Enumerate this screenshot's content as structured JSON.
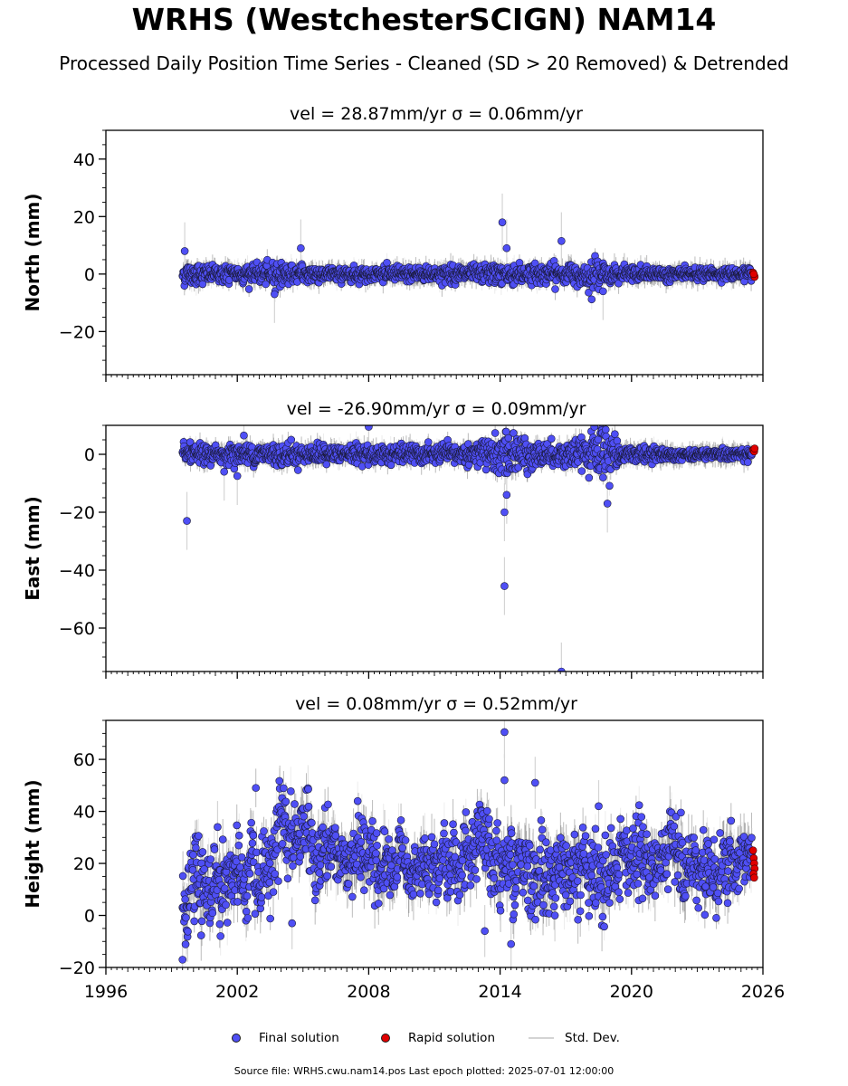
{
  "header": {
    "title": "WRHS (WestchesterSCIGN) NAM14",
    "subtitle": "Processed Daily Position Time Series - Cleaned (SD > 20 Removed) & Detrended"
  },
  "colors": {
    "final": "#4f4ff5",
    "final_edge": "#1a1a3a",
    "rapid": "#e00000",
    "std_dev": "#d4d4d4",
    "std_dev_dense": "#6a6a6a"
  },
  "legend": {
    "final": "Final solution",
    "rapid": "Rapid solution",
    "std": "Std. Dev."
  },
  "footer": {
    "text": "Source file: WRHS.cwu.nam14.pos  Last epoch plotted: 2025-07-01 12:00:00"
  },
  "chart_data": [
    {
      "type": "scatter",
      "title": "vel = 28.87mm/yr   σ = 0.06mm/yr",
      "ylabel": "North (mm)",
      "xlim": [
        1996,
        2026
      ],
      "ylim": [
        -35,
        50
      ],
      "yticks": [
        -20,
        0,
        20,
        40
      ],
      "xticks": [
        1996,
        2002,
        2008,
        2014,
        2020,
        2026
      ],
      "show_xtick_labels": false,
      "data_span": [
        1999.5,
        2025.5
      ],
      "band": [
        [
          1999.5,
          4
        ],
        [
          2001,
          3
        ],
        [
          2003,
          3
        ],
        [
          2004,
          4.5
        ],
        [
          2005,
          3
        ],
        [
          2007,
          2.5
        ],
        [
          2010,
          2.5
        ],
        [
          2013,
          3
        ],
        [
          2015,
          3.5
        ],
        [
          2017,
          3.5
        ],
        [
          2018.5,
          5
        ],
        [
          2019.5,
          2.5
        ],
        [
          2023,
          2
        ],
        [
          2025.5,
          2
        ]
      ],
      "final_outliers": [
        [
          2014.1,
          18
        ],
        [
          2014.3,
          9
        ],
        [
          2016.8,
          11.5
        ],
        [
          1999.6,
          8
        ],
        [
          2004.9,
          9
        ],
        [
          2003.7,
          -7
        ],
        [
          2018.7,
          -6
        ]
      ],
      "rapid_points": [
        [
          2025.55,
          0.5
        ],
        [
          2025.6,
          -0.5
        ],
        [
          2025.62,
          -1
        ],
        [
          2025.58,
          0
        ]
      ],
      "series": [
        {
          "name": "Final solution"
        },
        {
          "name": "Rapid solution"
        }
      ]
    },
    {
      "type": "scatter",
      "title": "vel = -26.90mm/yr   σ = 0.09mm/yr",
      "ylabel": "East (mm)",
      "xlim": [
        1996,
        2026
      ],
      "ylim": [
        -75,
        10
      ],
      "yticks": [
        -60,
        -40,
        -20,
        0
      ],
      "xticks": [
        1996,
        2002,
        2008,
        2014,
        2020,
        2026
      ],
      "show_xtick_labels": false,
      "data_span": [
        1999.5,
        2025.5
      ],
      "band": [
        [
          1999.5,
          3
        ],
        [
          2002,
          3
        ],
        [
          2004,
          4
        ],
        [
          2005,
          3
        ],
        [
          2008,
          3
        ],
        [
          2012,
          3
        ],
        [
          2013.5,
          6
        ],
        [
          2015,
          7
        ],
        [
          2016,
          4
        ],
        [
          2018,
          5
        ],
        [
          2018.8,
          12
        ],
        [
          2019.4,
          3
        ],
        [
          2022,
          2
        ],
        [
          2025.5,
          2
        ]
      ],
      "final_outliers": [
        [
          1999.7,
          -23
        ],
        [
          2014.2,
          -45.5
        ],
        [
          2014.2,
          -20
        ],
        [
          2014.3,
          -14
        ],
        [
          2016.8,
          -75
        ],
        [
          2008,
          9.5
        ],
        [
          2002.3,
          6.5
        ],
        [
          2001.4,
          -6
        ],
        [
          2002,
          -7.5
        ],
        [
          2018.9,
          -17
        ]
      ],
      "rapid_points": [
        [
          2025.55,
          1.5
        ],
        [
          2025.6,
          1
        ],
        [
          2025.62,
          2
        ]
      ],
      "series": [
        {
          "name": "Final solution"
        },
        {
          "name": "Rapid solution"
        }
      ]
    },
    {
      "type": "scatter",
      "title": "vel = 0.08mm/yr   σ = 0.52mm/yr",
      "ylabel": "Height (mm)",
      "xlim": [
        1996,
        2026
      ],
      "ylim": [
        -20,
        75
      ],
      "yticks": [
        -20,
        0,
        20,
        40,
        60
      ],
      "xticks": [
        1996,
        2002,
        2008,
        2014,
        2020,
        2026
      ],
      "xtick_labels": [
        "1996",
        "2002",
        "2008",
        "2014",
        "2020",
        "2026"
      ],
      "show_xtick_labels": true,
      "data_span": [
        1999.5,
        2025.5
      ],
      "center": [
        [
          1999.5,
          10
        ],
        [
          2001,
          11
        ],
        [
          2002.5,
          14
        ],
        [
          2003.5,
          22
        ],
        [
          2004.2,
          32
        ],
        [
          2005,
          26
        ],
        [
          2006,
          24
        ],
        [
          2008,
          25
        ],
        [
          2009,
          21
        ],
        [
          2011,
          19
        ],
        [
          2013,
          18
        ],
        [
          2014.3,
          22
        ],
        [
          2016,
          19
        ],
        [
          2018,
          18
        ],
        [
          2019,
          17
        ],
        [
          2021,
          19
        ],
        [
          2023,
          21
        ],
        [
          2025.5,
          20
        ]
      ],
      "band_half": [
        [
          1999.5,
          12
        ],
        [
          2004.2,
          14
        ],
        [
          2006,
          10
        ],
        [
          2010,
          10
        ],
        [
          2014.5,
          13
        ],
        [
          2019,
          13
        ],
        [
          2025.5,
          9
        ]
      ],
      "final_outliers": [
        [
          2014.2,
          70.5
        ],
        [
          2014.2,
          52
        ],
        [
          2015.6,
          51
        ],
        [
          2018.5,
          42
        ],
        [
          1999.5,
          -17
        ],
        [
          2014.5,
          -11
        ],
        [
          2013.3,
          -6
        ],
        [
          2016.5,
          0
        ],
        [
          2004.5,
          -3
        ],
        [
          2001.1,
          34
        ]
      ],
      "rapid_points": [
        [
          2025.55,
          25
        ],
        [
          2025.58,
          22
        ],
        [
          2025.6,
          20
        ],
        [
          2025.62,
          18
        ],
        [
          2025.57,
          16
        ],
        [
          2025.6,
          14.5
        ]
      ],
      "series": [
        {
          "name": "Final solution"
        },
        {
          "name": "Rapid solution"
        }
      ]
    }
  ]
}
